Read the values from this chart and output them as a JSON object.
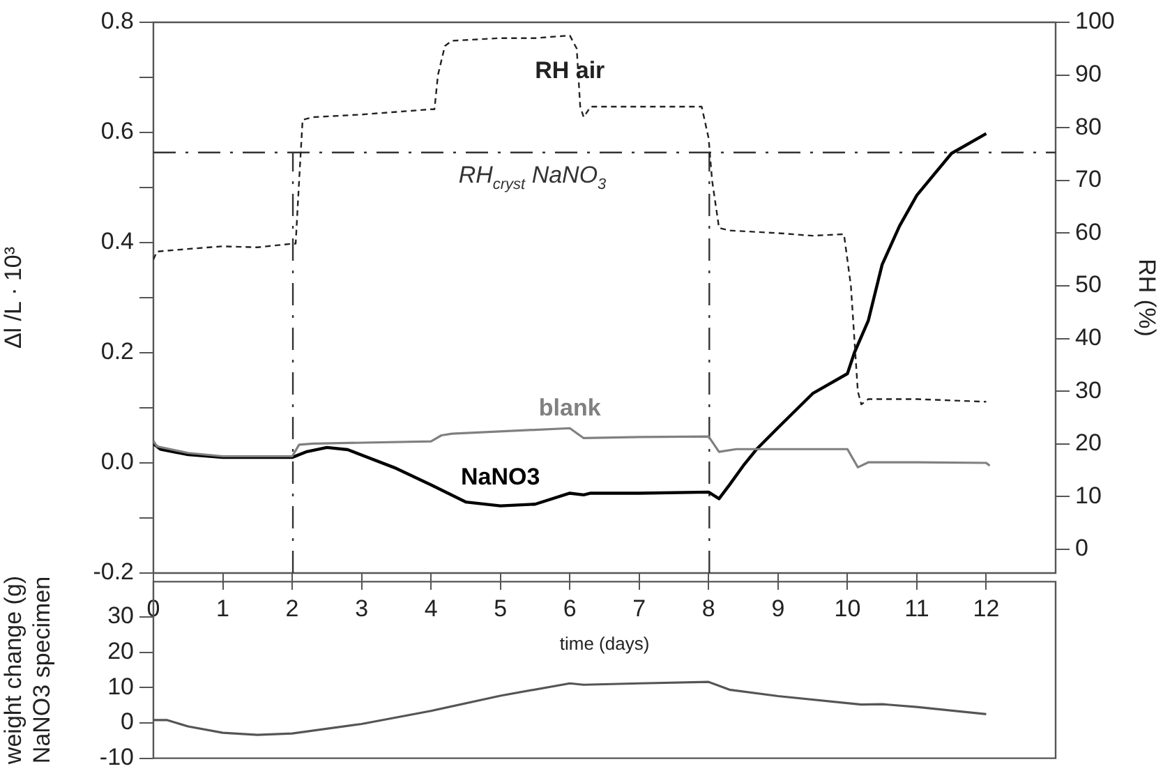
{
  "chart_data": [
    {
      "type": "line",
      "ylabel": "Δl /L · 10³",
      "y2label": "RH (%)",
      "xlabel": "time (days)",
      "legend": false,
      "grid": false,
      "marker": "none",
      "xlim": [
        0,
        13
      ],
      "xticks": [
        0,
        1,
        2,
        3,
        4,
        5,
        6,
        7,
        8,
        9,
        10,
        11,
        12
      ],
      "ylim": [
        -0.2,
        0.8
      ],
      "yticks": [
        -0.2,
        {
          "value": -0.1,
          "label": null
        },
        {
          "value": 0,
          "label": "0.0"
        },
        {
          "value": 0.1,
          "label": null
        },
        0.2,
        {
          "value": 0.3,
          "label": null
        },
        0.4,
        {
          "value": 0.5,
          "label": null
        },
        0.6,
        {
          "value": 0.7,
          "label": null
        },
        0.8
      ],
      "y2lim": [
        -4.5,
        100
      ],
      "y2ticks": [
        0,
        10,
        20,
        30,
        40,
        50,
        60,
        70,
        80,
        90,
        100
      ],
      "ref_lines": [
        {
          "axis": "y2",
          "value": 75.3,
          "label": "RH$_{cryst}$ NaNO$_{3}$",
          "color": "#333333",
          "line_style": "dashed"
        },
        {
          "axis": "x",
          "value": 2.01,
          "color": "#333333",
          "line_style": "dashed"
        },
        {
          "axis": "x",
          "value": 8.01,
          "color": "#333333",
          "line_style": "dashed"
        }
      ],
      "series": [
        {
          "name": "RH air",
          "color": "#222222",
          "axis": "y2",
          "line_style": "dotted",
          "x": [
            0,
            0.05,
            0.5,
            1,
            1.5,
            2,
            2.05,
            2.1,
            2.15,
            2.3,
            3,
            4,
            4.05,
            4.1,
            4.2,
            4.3,
            5,
            5.5,
            6,
            6.1,
            6.15,
            6.2,
            6.3,
            7,
            7.9,
            8,
            8.05,
            8.15,
            8.3,
            9,
            9.5,
            9.95,
            10.05,
            10.15,
            10.2,
            10.3,
            11,
            12
          ],
          "values": [
            55,
            56.5,
            57,
            57.5,
            57.3,
            58,
            58,
            70,
            81.5,
            82,
            82.5,
            83.5,
            83.5,
            90,
            95.5,
            96.5,
            97,
            97,
            97.5,
            95,
            84,
            82,
            84,
            84,
            84,
            78,
            70,
            61,
            60.5,
            60,
            59.5,
            59.8,
            50,
            30,
            27.5,
            28.5,
            28.5,
            28
          ]
        },
        {
          "name": "blank",
          "color": "#808080",
          "line_style": "solid",
          "x": [
            0,
            0.05,
            0.5,
            1,
            2,
            2.1,
            2.3,
            4,
            4.15,
            4.3,
            6,
            6.2,
            7,
            8,
            8.15,
            8.4,
            10,
            10.15,
            10.3,
            11,
            12,
            12.05
          ],
          "values": [
            0.04,
            0.03,
            0.018,
            0.012,
            0.012,
            0.033,
            0.035,
            0.039,
            0.05,
            0.053,
            0.063,
            0.045,
            0.047,
            0.048,
            0.02,
            0.025,
            0.025,
            -0.008,
            0.001,
            0.001,
            0,
            -0.005
          ]
        },
        {
          "name": "NaNO3",
          "color": "#000000",
          "line_style": "solid",
          "x": [
            0,
            0.1,
            0.5,
            1,
            2,
            2.2,
            2.5,
            2.8,
            3.5,
            4,
            4.5,
            5,
            5.5,
            6,
            6.2,
            6.3,
            7,
            8,
            8.15,
            8.3,
            8.5,
            8.7,
            9,
            9.5,
            10,
            10.1,
            10.3,
            10.5,
            10.75,
            11,
            11.5,
            12
          ],
          "values": [
            0.035,
            0.025,
            0.015,
            0.01,
            0.01,
            0.02,
            0.028,
            0.024,
            -0.01,
            -0.04,
            -0.071,
            -0.078,
            -0.075,
            -0.055,
            -0.058,
            -0.055,
            -0.055,
            -0.053,
            -0.065,
            -0.04,
            -0.005,
            0.026,
            0.064,
            0.126,
            0.162,
            0.2,
            0.258,
            0.36,
            0.43,
            0.486,
            0.562,
            0.598
          ]
        }
      ]
    },
    {
      "type": "line",
      "ylabel": "weight change (g)\nNaNO3 specimen",
      "legend": false,
      "grid": false,
      "marker": "none",
      "tick_labels": "y",
      "xlim": [
        0,
        13
      ],
      "ylim": [
        -10,
        40
      ],
      "yticks": [
        -10,
        0,
        10,
        20,
        30
      ],
      "series": [
        {
          "color": "#555555",
          "line_style": "solid",
          "x": [
            0,
            0.2,
            0.5,
            1,
            1.5,
            2,
            3,
            4,
            5,
            6,
            6.2,
            7,
            8,
            8.3,
            9,
            10,
            10.2,
            10.5,
            11,
            12
          ],
          "values": [
            0.8,
            0.8,
            -1,
            -2.8,
            -3.4,
            -3,
            -0.3,
            3.4,
            7.7,
            11.2,
            10.8,
            11.2,
            11.6,
            9.4,
            7.6,
            5.6,
            5.2,
            5.3,
            4.5,
            2.5
          ]
        }
      ]
    }
  ]
}
